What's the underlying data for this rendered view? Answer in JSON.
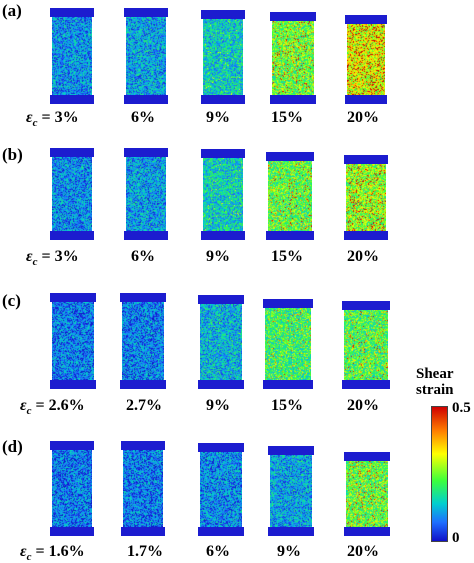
{
  "rows": [
    {
      "label": "(a)",
      "strains": [
        "ε_c = 3%",
        "6%",
        "9%",
        "15%",
        "20%"
      ],
      "levels": [
        0.12,
        0.16,
        0.28,
        0.62,
        0.85
      ]
    },
    {
      "label": "(b)",
      "strains": [
        "ε_c = 3%",
        "6%",
        "9%",
        "15%",
        "20%"
      ],
      "levels": [
        0.1,
        0.14,
        0.3,
        0.58,
        0.7
      ]
    },
    {
      "label": "(c)",
      "strains": [
        "ε_c = 2.6%",
        "2.7%",
        "9%",
        "15%",
        "20%"
      ],
      "levels": [
        0.06,
        0.07,
        0.2,
        0.5,
        0.55
      ]
    },
    {
      "label": "(d)",
      "strains": [
        "ε_c = 1.6%",
        "1.7%",
        "6%",
        "9%",
        "20%"
      ],
      "levels": [
        0.05,
        0.06,
        0.1,
        0.16,
        0.6
      ]
    }
  ],
  "colorbar": {
    "title_line1": "Shear",
    "title_line2": "strain",
    "max_label": "0.5",
    "min_label": "0"
  },
  "colors": {
    "plate": "#1c1ccf",
    "low": "#1010c8",
    "high": "#d00000"
  }
}
